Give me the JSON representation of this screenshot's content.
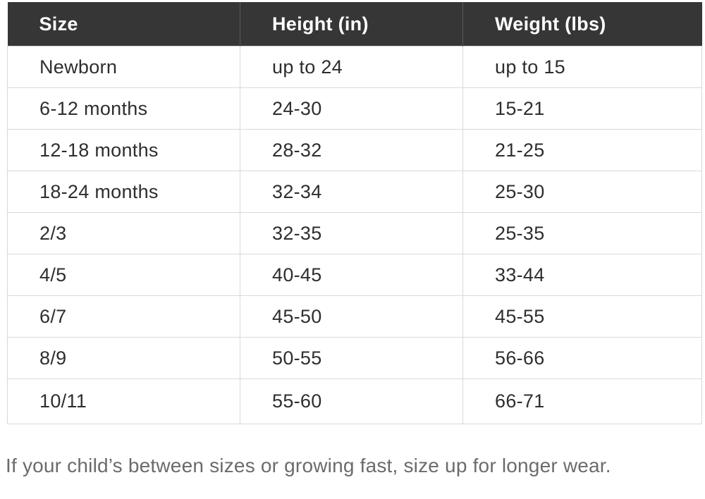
{
  "chart_data": {
    "type": "table",
    "title": "",
    "columns": [
      "Size",
      "Height (in)",
      "Weight (lbs)"
    ],
    "rows": [
      [
        "Newborn",
        "up to 24",
        "up to 15"
      ],
      [
        "6-12 months",
        "24-30",
        "15-21"
      ],
      [
        "12-18 months",
        "28-32",
        "21-25"
      ],
      [
        "18-24 months",
        "32-34",
        "25-30"
      ],
      [
        "2/3",
        "32-35",
        "25-35"
      ],
      [
        "4/5",
        "40-45",
        "33-44"
      ],
      [
        "6/7",
        "45-50",
        "45-55"
      ],
      [
        "8/9",
        "50-55",
        "56-66"
      ],
      [
        "10/11",
        "55-60",
        "66-71"
      ]
    ],
    "annotation": "If your child’s between sizes or growing fast, size up for longer wear."
  },
  "colors": {
    "header_bg": "#363636",
    "header_text": "#ffffff",
    "body_text": "#2e2e2e",
    "border": "#d9d9d9",
    "header_divider": "#5a5a5a",
    "footer_text": "#6b6b6b"
  }
}
